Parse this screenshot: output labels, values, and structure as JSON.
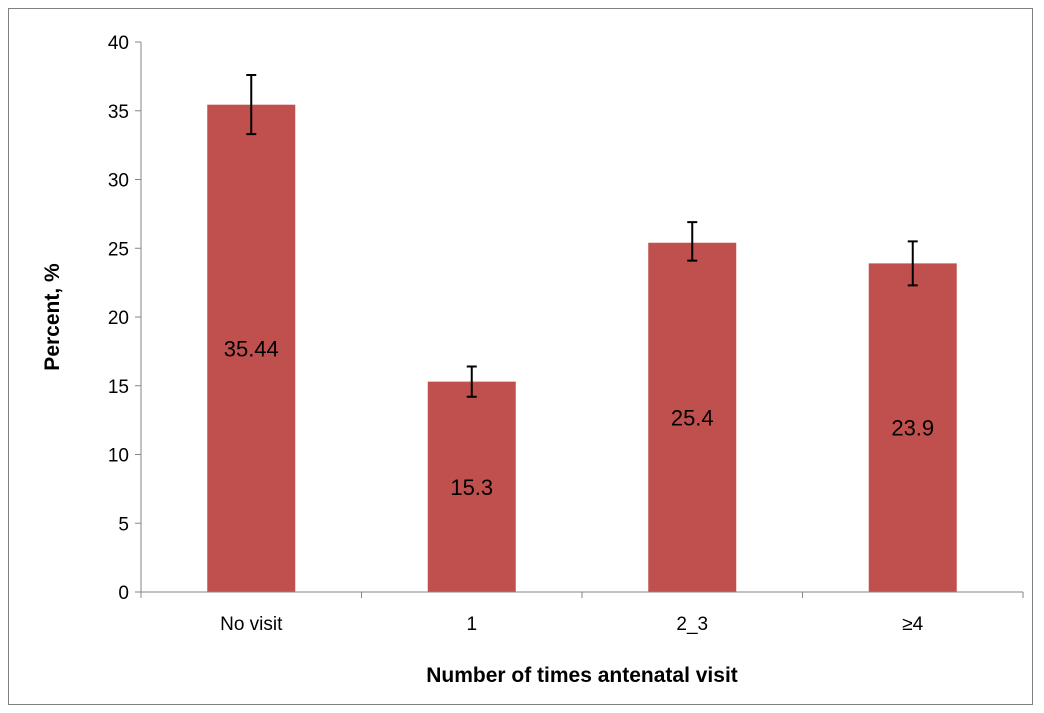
{
  "chart_data": {
    "type": "bar",
    "title": "",
    "xlabel": "Number of times antenatal visit",
    "ylabel": "Percent, %",
    "categories": [
      "No visit",
      "1",
      "2_3",
      "≥4"
    ],
    "values": [
      35.44,
      15.3,
      25.4,
      23.9
    ],
    "data_labels": [
      "35.44",
      "15.3",
      "25.4",
      "23.9"
    ],
    "error_bars": [
      {
        "low": 33.3,
        "high": 37.6
      },
      {
        "low": 14.2,
        "high": 16.4
      },
      {
        "low": 24.1,
        "high": 26.9
      },
      {
        "low": 22.3,
        "high": 25.5
      }
    ],
    "ylim": [
      0,
      40
    ],
    "yticks": [
      "0",
      "5",
      "10",
      "15",
      "20",
      "25",
      "30",
      "35",
      "40"
    ],
    "grid": false,
    "legend": "none",
    "bar_color": "#C0504D",
    "axis_color": "#868686"
  }
}
